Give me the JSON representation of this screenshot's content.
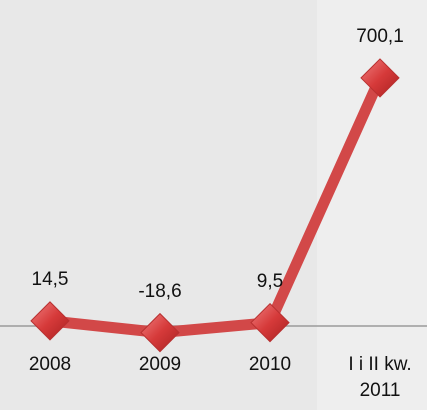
{
  "chart_data": {
    "type": "line",
    "categories": [
      "2008",
      "2009",
      "2010",
      "I i II kw. 2011"
    ],
    "series": [
      {
        "color": "#d24848",
        "values": [
          14.5,
          -18.6,
          9.5,
          700.1
        ],
        "value_labels": [
          "14,5",
          "-18,6",
          "9,5",
          "700,1"
        ]
      }
    ],
    "ylim": [
      -237,
      920
    ]
  }
}
